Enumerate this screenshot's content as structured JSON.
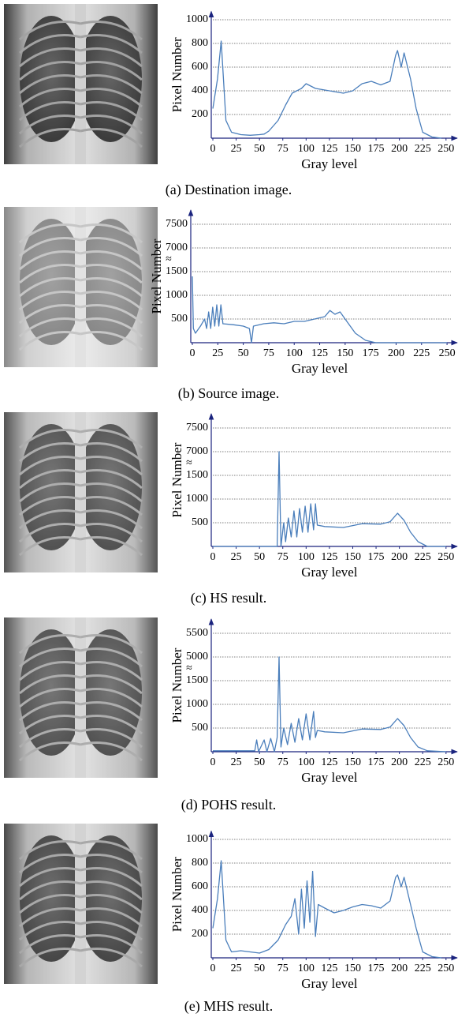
{
  "chart_data": [
    {
      "type": "line",
      "caption": "(a) Destination image.",
      "xlabel": "Gray level",
      "ylabel": "Pixel Number",
      "color": "#4a7ebb",
      "grid": true,
      "xlim": [
        0,
        262
      ],
      "xticks": [
        0,
        25,
        50,
        75,
        100,
        125,
        150,
        175,
        200,
        225,
        250
      ],
      "ylim": [
        0,
        1070
      ],
      "yticks": [
        200,
        400,
        600,
        800,
        1000
      ],
      "x": [
        0,
        5,
        9,
        14,
        20,
        30,
        40,
        50,
        55,
        60,
        70,
        78,
        85,
        95,
        100,
        110,
        125,
        140,
        150,
        160,
        170,
        180,
        190,
        196,
        198,
        202,
        205,
        212,
        218,
        225,
        235,
        245
      ],
      "values": [
        250,
        500,
        820,
        150,
        50,
        30,
        25,
        30,
        35,
        60,
        150,
        280,
        380,
        420,
        460,
        420,
        400,
        380,
        400,
        460,
        480,
        450,
        480,
        700,
        740,
        600,
        720,
        500,
        250,
        50,
        10,
        0
      ]
    },
    {
      "type": "line",
      "caption": "(b) Source image.",
      "xlabel": "Gray level",
      "ylabel": "Pixel Number",
      "color": "#4a7ebb",
      "grid": true,
      "xlim": [
        0,
        260
      ],
      "xticks": [
        0,
        25,
        50,
        75,
        100,
        125,
        150,
        175,
        200,
        225,
        250
      ],
      "ylim": [
        0,
        7800
      ],
      "yticks": [
        500,
        1000,
        1500,
        7000,
        7500
      ],
      "ybreak": [
        1500,
        7000
      ],
      "ybreak_label": "≈",
      "x": [
        0,
        1,
        3,
        8,
        12,
        14,
        16,
        18,
        20,
        22,
        24,
        26,
        28,
        30,
        40,
        50,
        56,
        58,
        60,
        70,
        80,
        90,
        100,
        110,
        120,
        130,
        135,
        140,
        145,
        150,
        155,
        160,
        170,
        180,
        250
      ],
      "values": [
        1400,
        300,
        200,
        350,
        500,
        300,
        650,
        300,
        750,
        350,
        800,
        350,
        800,
        400,
        380,
        350,
        300,
        0,
        350,
        400,
        420,
        400,
        450,
        450,
        500,
        550,
        680,
        600,
        650,
        500,
        350,
        200,
        50,
        0,
        0
      ]
    },
    {
      "type": "line",
      "caption": "(c) HS result.",
      "xlabel": "Gray level",
      "ylabel": "Pixel Number",
      "color": "#4a7ebb",
      "grid": true,
      "xlim": [
        0,
        262
      ],
      "xticks": [
        0,
        25,
        50,
        75,
        100,
        125,
        150,
        175,
        200,
        225,
        250
      ],
      "ylim": [
        0,
        7800
      ],
      "yticks": [
        500,
        1000,
        1500,
        7000,
        7500
      ],
      "ybreak": [
        1500,
        7000
      ],
      "ybreak_label": "≈",
      "x": [
        0,
        69,
        71,
        73,
        76,
        78,
        81,
        84,
        87,
        90,
        93,
        96,
        99,
        102,
        105,
        108,
        110,
        112,
        120,
        140,
        160,
        180,
        190,
        198,
        205,
        212,
        220,
        230,
        250
      ],
      "values": [
        0,
        0,
        7000,
        0,
        500,
        100,
        600,
        200,
        750,
        200,
        800,
        300,
        850,
        300,
        900,
        350,
        900,
        450,
        420,
        400,
        480,
        470,
        520,
        700,
        550,
        300,
        100,
        0,
        0
      ]
    },
    {
      "type": "line",
      "caption": "(d) POHS result.",
      "xlabel": "Gray level",
      "ylabel": "Pixel Number",
      "color": "#4a7ebb",
      "grid": true,
      "xlim": [
        0,
        262
      ],
      "xticks": [
        0,
        25,
        50,
        75,
        100,
        125,
        150,
        175,
        200,
        225,
        250
      ],
      "ylim": [
        0,
        5800
      ],
      "yticks": [
        500,
        1000,
        1500,
        5000,
        5500
      ],
      "ybreak": [
        1500,
        5000
      ],
      "ybreak_label": "≈",
      "x": [
        0,
        45,
        47,
        49,
        55,
        58,
        62,
        66,
        69,
        71,
        73,
        76,
        80,
        84,
        88,
        92,
        96,
        100,
        104,
        108,
        110,
        112,
        120,
        140,
        160,
        180,
        190,
        198,
        205,
        212,
        220,
        230,
        250
      ],
      "values": [
        20,
        20,
        250,
        0,
        250,
        0,
        280,
        0,
        300,
        5000,
        100,
        500,
        150,
        600,
        200,
        700,
        250,
        800,
        250,
        850,
        300,
        450,
        420,
        400,
        480,
        470,
        520,
        700,
        550,
        300,
        100,
        20,
        0
      ]
    },
    {
      "type": "line",
      "caption": "(e) MHS result.",
      "xlabel": "Gray level",
      "ylabel": "Pixel Number",
      "color": "#4a7ebb",
      "grid": true,
      "xlim": [
        0,
        262
      ],
      "xticks": [
        0,
        25,
        50,
        75,
        100,
        125,
        150,
        175,
        200,
        225,
        250
      ],
      "ylim": [
        0,
        1070
      ],
      "yticks": [
        200,
        400,
        600,
        800,
        1000
      ],
      "x": [
        0,
        5,
        9,
        14,
        20,
        30,
        40,
        50,
        60,
        70,
        78,
        84,
        88,
        92,
        95,
        98,
        101,
        104,
        107,
        110,
        113,
        120,
        130,
        140,
        150,
        160,
        170,
        180,
        190,
        196,
        198,
        202,
        205,
        212,
        218,
        225,
        235,
        245
      ],
      "values": [
        250,
        500,
        820,
        150,
        50,
        60,
        50,
        40,
        70,
        150,
        280,
        350,
        500,
        200,
        580,
        250,
        650,
        300,
        730,
        180,
        450,
        420,
        380,
        400,
        430,
        450,
        440,
        420,
        480,
        680,
        700,
        600,
        680,
        450,
        250,
        50,
        10,
        0
      ]
    }
  ]
}
